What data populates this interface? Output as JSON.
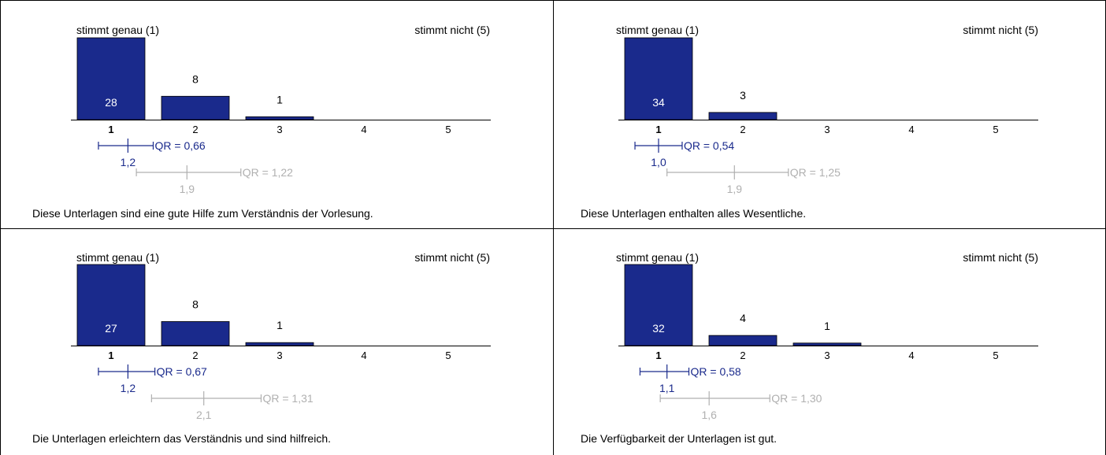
{
  "colors": {
    "bar": "#1a2a8c",
    "bar_label_inside": "#ffffff",
    "bar_label_outside": "#000000",
    "individual_interval": "#1a2a8c",
    "comparison_interval": "#b0b0b0",
    "border": "#000000"
  },
  "chart_data": [
    {
      "type": "bar",
      "left_anchor": "stimmt genau (1)",
      "right_anchor": "stimmt  nicht (5)",
      "categories": [
        "1",
        "2",
        "3",
        "4",
        "5"
      ],
      "values": [
        28,
        8,
        1,
        0,
        0
      ],
      "value_labels": [
        "28",
        "8",
        "1",
        "",
        ""
      ],
      "mean": {
        "value": 1.2,
        "label": "1,2",
        "qr": "QR = 0,66",
        "whisker": [
          0.85,
          1.5
        ]
      },
      "comparison": {
        "value": 1.9,
        "label": "1,9",
        "qr": "QR = 1,22",
        "whisker": [
          1.3,
          2.54
        ]
      },
      "caption": "Diese Unterlagen sind eine gute Hilfe zum Verständnis der Vorlesung."
    },
    {
      "type": "bar",
      "left_anchor": "stimmt genau (1)",
      "right_anchor": "stimmt  nicht (5)",
      "categories": [
        "1",
        "2",
        "3",
        "4",
        "5"
      ],
      "values": [
        34,
        3,
        0,
        0,
        0
      ],
      "value_labels": [
        "34",
        "3",
        "",
        "",
        ""
      ],
      "mean": {
        "value": 1.0,
        "label": "1,0",
        "qr": "QR = 0,54",
        "whisker": [
          0.72,
          1.28
        ]
      },
      "comparison": {
        "value": 1.9,
        "label": "1,9",
        "qr": "QR = 1,25",
        "whisker": [
          1.1,
          2.54
        ]
      },
      "caption": "Diese Unterlagen enthalten alles Wesentliche."
    },
    {
      "type": "bar",
      "left_anchor": "stimmt genau (1)",
      "right_anchor": "stimmt  nicht (5)",
      "categories": [
        "1",
        "2",
        "3",
        "4",
        "5"
      ],
      "values": [
        27,
        8,
        1,
        0,
        0
      ],
      "value_labels": [
        "27",
        "8",
        "1",
        "",
        ""
      ],
      "mean": {
        "value": 1.2,
        "label": "1,2",
        "qr": "QR = 0,67",
        "whisker": [
          0.85,
          1.52
        ]
      },
      "comparison": {
        "value": 2.1,
        "label": "2,1",
        "qr": "QR = 1,31",
        "whisker": [
          1.48,
          2.78
        ]
      },
      "caption": "Die Unterlagen erleichtern das Verständnis und sind hilfreich."
    },
    {
      "type": "bar",
      "left_anchor": "stimmt genau (1)",
      "right_anchor": "stimmt  nicht (5)",
      "categories": [
        "1",
        "2",
        "3",
        "4",
        "5"
      ],
      "values": [
        32,
        4,
        1,
        0,
        0
      ],
      "value_labels": [
        "32",
        "4",
        "1",
        "",
        ""
      ],
      "mean": {
        "value": 1.1,
        "label": "1,1",
        "qr": "QR = 0,58",
        "whisker": [
          0.78,
          1.36
        ]
      },
      "comparison": {
        "value": 1.6,
        "label": "1,6",
        "qr": "QR = 1,30",
        "whisker": [
          1.02,
          2.32
        ]
      },
      "caption": "Die Verfügbarkeit der Unterlagen ist gut."
    }
  ]
}
